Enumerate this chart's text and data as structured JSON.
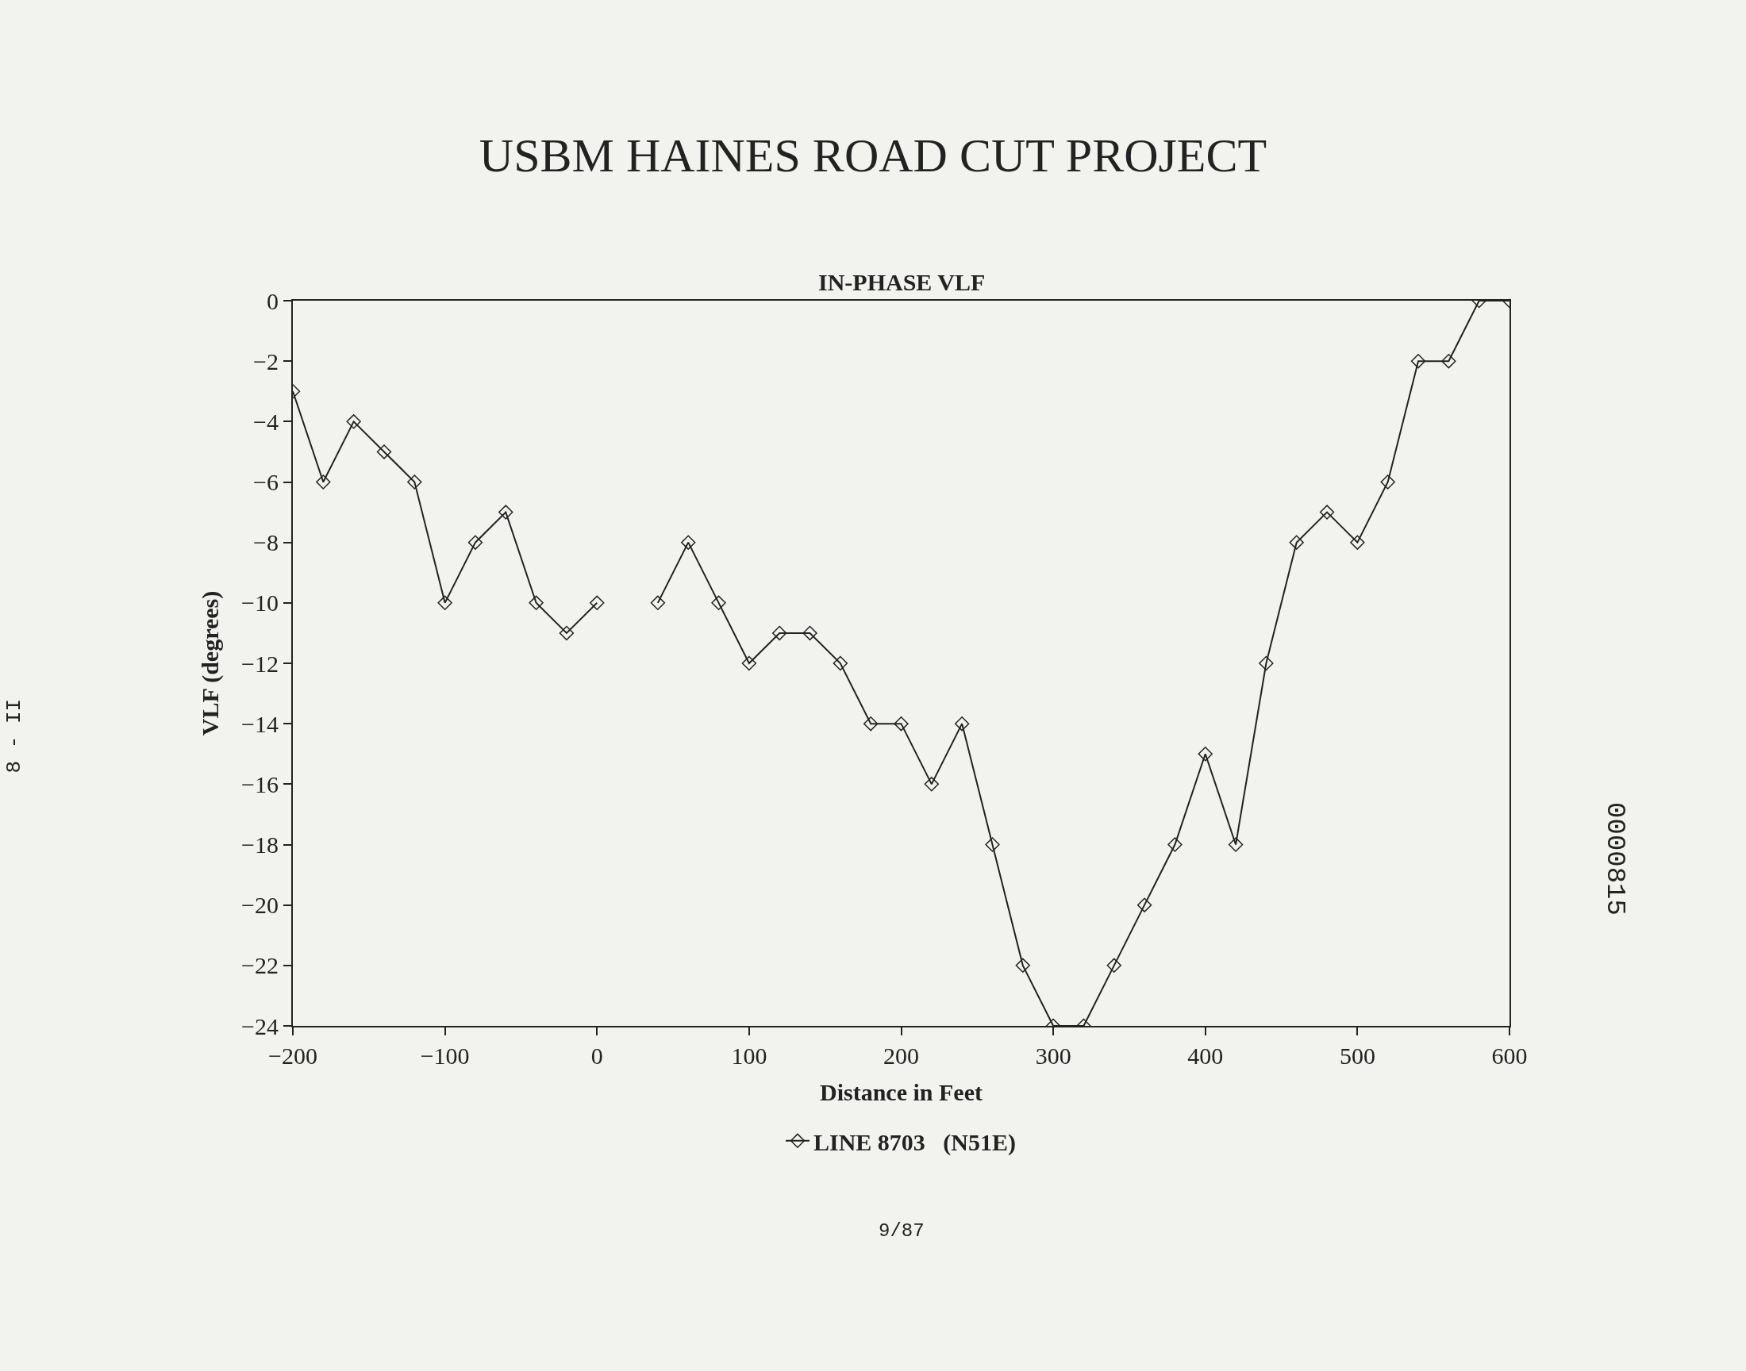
{
  "chart_data": {
    "type": "line",
    "title": "USBM HAINES ROAD CUT PROJECT",
    "subtitle": "IN-PHASE VLF",
    "xlabel": "Distance in Feet",
    "ylabel": "VLF (degrees)",
    "x": [
      -200,
      -180,
      -160,
      -140,
      -120,
      -100,
      -80,
      -60,
      -40,
      -20,
      0,
      20,
      40,
      60,
      80,
      100,
      120,
      140,
      160,
      180,
      200,
      220,
      240,
      260,
      280,
      300,
      320,
      340,
      360,
      380,
      400,
      420,
      440,
      460,
      480,
      500,
      520,
      540,
      560,
      580,
      600
    ],
    "series": [
      {
        "name": "LINE 8703   (N51E)",
        "color": "#222222",
        "values": [
          -3,
          -6,
          -4,
          -5,
          -6,
          -10,
          -8,
          -7,
          -10,
          -11,
          -10,
          null,
          -10,
          -8,
          -10,
          -12,
          -11,
          -11,
          -12,
          -14,
          -14,
          -16,
          -14,
          -18,
          -22,
          -24,
          -24,
          -22,
          -20,
          -18,
          -15,
          -18,
          -12,
          -8,
          -7,
          -8,
          -6,
          -2,
          -2,
          0,
          0
        ]
      }
    ],
    "xlim": [
      -200,
      600
    ],
    "xticks": [
      -200,
      -100,
      0,
      100,
      200,
      300,
      400,
      500,
      600
    ],
    "ylim": [
      -24,
      0
    ],
    "yticks": [
      -24,
      -22,
      -20,
      -18,
      -16,
      -14,
      -12,
      -10,
      -8,
      -6,
      -4,
      -2,
      0
    ],
    "marker": "diamond",
    "line_style": "solid",
    "grid": false,
    "legend": "bottom",
    "annotations": [
      "9/87",
      "8 - II",
      "0000815"
    ]
  }
}
